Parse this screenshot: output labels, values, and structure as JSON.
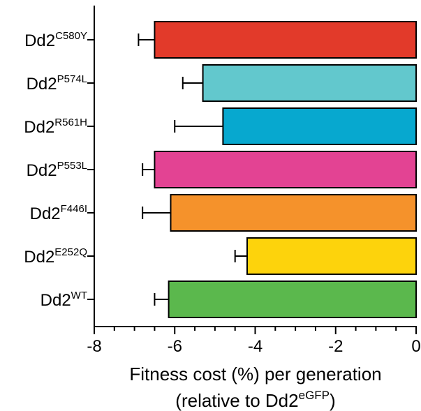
{
  "chart_data": {
    "type": "bar",
    "orientation": "horizontal",
    "categories": [
      {
        "base": "Dd2",
        "sup": "C580Y"
      },
      {
        "base": "Dd2",
        "sup": "P574L"
      },
      {
        "base": "Dd2",
        "sup": "R561H"
      },
      {
        "base": "Dd2",
        "sup": "P553L"
      },
      {
        "base": "Dd2",
        "sup": "F446I"
      },
      {
        "base": "Dd2",
        "sup": "E252Q"
      },
      {
        "base": "Dd2",
        "sup": "WT"
      }
    ],
    "values": [
      -6.5,
      -5.3,
      -4.8,
      -6.5,
      -6.1,
      -4.2,
      -6.15
    ],
    "errors": [
      0.4,
      0.5,
      1.2,
      0.3,
      0.7,
      0.3,
      0.35
    ],
    "colors": [
      "#e23a2a",
      "#62c8cd",
      "#07a8cf",
      "#e34393",
      "#f5922b",
      "#fdd30c",
      "#5bb84d"
    ],
    "xlim": [
      -8,
      0
    ],
    "xticks": [
      -8,
      -6,
      -4,
      -2,
      0
    ],
    "xtick_labels": [
      "-8",
      "-6",
      "-4",
      "-2",
      "0"
    ],
    "xlabel_line1": "Fitness cost (%) per generation",
    "xlabel_line2_prefix": "(relative to Dd2",
    "xlabel_line2_sup": "eGFP",
    "xlabel_line2_suffix": ")",
    "grid": false,
    "legend": "none"
  }
}
